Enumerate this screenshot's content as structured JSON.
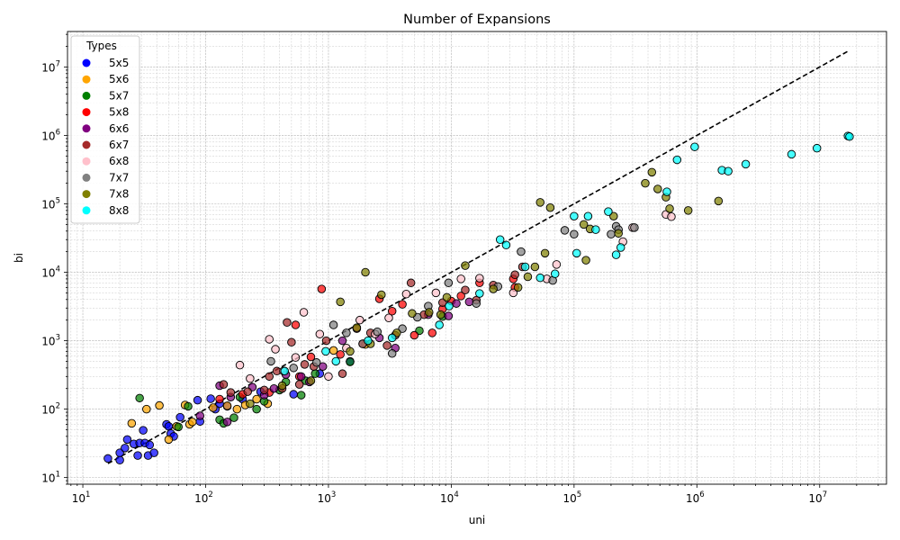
{
  "chart_data": {
    "type": "scatter",
    "title": "Number of Expansions",
    "xlabel": "uni",
    "ylabel": "bi",
    "xscale": "log",
    "yscale": "log",
    "xlim": [
      7.5,
      35000000
    ],
    "ylim": [
      8,
      33000000
    ],
    "grid": true,
    "legend": {
      "title": "Types",
      "placement": "top-left"
    },
    "x_ticks": [
      {
        "value": 10,
        "base": "10",
        "exp": "1"
      },
      {
        "value": 100,
        "base": "10",
        "exp": "2"
      },
      {
        "value": 1000,
        "base": "10",
        "exp": "3"
      },
      {
        "value": 10000,
        "base": "10",
        "exp": "4"
      },
      {
        "value": 100000,
        "base": "10",
        "exp": "5"
      },
      {
        "value": 1000000,
        "base": "10",
        "exp": "6"
      },
      {
        "value": 10000000,
        "base": "10",
        "exp": "7"
      }
    ],
    "y_ticks": [
      {
        "value": 10,
        "base": "10",
        "exp": "1"
      },
      {
        "value": 100,
        "base": "10",
        "exp": "2"
      },
      {
        "value": 1000,
        "base": "10",
        "exp": "3"
      },
      {
        "value": 10000,
        "base": "10",
        "exp": "4"
      },
      {
        "value": 100000,
        "base": "10",
        "exp": "5"
      },
      {
        "value": 1000000,
        "base": "10",
        "exp": "6"
      },
      {
        "value": 10000000,
        "base": "10",
        "exp": "7"
      }
    ],
    "reference_line": {
      "style": "dashed",
      "color": "#000000",
      "x": [
        16,
        17000000
      ],
      "y": [
        16,
        17000000
      ]
    },
    "series": [
      {
        "name": "5x5",
        "color": "#0000ff",
        "points": [
          [
            16,
            19
          ],
          [
            20,
            18
          ],
          [
            20,
            23
          ],
          [
            22,
            27
          ],
          [
            23,
            36
          ],
          [
            26,
            31
          ],
          [
            28,
            21
          ],
          [
            29,
            32
          ],
          [
            31,
            49
          ],
          [
            32,
            32
          ],
          [
            34,
            21
          ],
          [
            35,
            30
          ],
          [
            38,
            23
          ],
          [
            48,
            60
          ],
          [
            50,
            56
          ],
          [
            52,
            44
          ],
          [
            55,
            40
          ],
          [
            62,
            76
          ],
          [
            86,
            135
          ],
          [
            90,
            66
          ],
          [
            110,
            142
          ],
          [
            120,
            100
          ],
          [
            130,
            120
          ],
          [
            150,
            110
          ],
          [
            200,
            140
          ],
          [
            280,
            180
          ],
          [
            520,
            165
          ],
          [
            850,
            330
          ],
          [
            1500,
            500
          ]
        ]
      },
      {
        "name": "5x6",
        "color": "#ffa500",
        "points": [
          [
            25,
            62
          ],
          [
            33,
            100
          ],
          [
            42,
            113
          ],
          [
            50,
            36
          ],
          [
            58,
            56
          ],
          [
            68,
            115
          ],
          [
            74,
            60
          ],
          [
            78,
            65
          ],
          [
            115,
            105
          ],
          [
            150,
            112
          ],
          [
            180,
            100
          ],
          [
            210,
            115
          ],
          [
            260,
            140
          ],
          [
            320,
            120
          ],
          [
            1100,
            720
          ],
          [
            2000,
            880
          ]
        ]
      },
      {
        "name": "5x7",
        "color": "#008000",
        "points": [
          [
            29,
            145
          ],
          [
            60,
            55
          ],
          [
            72,
            110
          ],
          [
            130,
            70
          ],
          [
            140,
            62
          ],
          [
            170,
            75
          ],
          [
            190,
            150
          ],
          [
            260,
            100
          ],
          [
            300,
            130
          ],
          [
            400,
            190
          ],
          [
            450,
            250
          ],
          [
            600,
            160
          ],
          [
            650,
            260
          ],
          [
            780,
            330
          ],
          [
            1500,
            490
          ],
          [
            5500,
            1400
          ],
          [
            8500,
            2250
          ]
        ]
      },
      {
        "name": "5x8",
        "color": "#ff0000",
        "points": [
          [
            130,
            140
          ],
          [
            200,
            165
          ],
          [
            330,
            175
          ],
          [
            540,
            1700
          ],
          [
            580,
            300
          ],
          [
            720,
            580
          ],
          [
            880,
            5700
          ],
          [
            1250,
            630
          ],
          [
            1900,
            900
          ],
          [
            2600,
            4100
          ],
          [
            3300,
            2700
          ],
          [
            4000,
            3400
          ],
          [
            5000,
            1200
          ],
          [
            7000,
            1300
          ],
          [
            8500,
            2900
          ],
          [
            10000,
            3800
          ],
          [
            12000,
            4500
          ],
          [
            17000,
            7000
          ],
          [
            32000,
            8000
          ],
          [
            33000,
            6000
          ]
        ]
      },
      {
        "name": "6x6",
        "color": "#800080",
        "points": [
          [
            90,
            80
          ],
          [
            130,
            220
          ],
          [
            150,
            65
          ],
          [
            160,
            150
          ],
          [
            240,
            210
          ],
          [
            300,
            160
          ],
          [
            360,
            200
          ],
          [
            450,
            320
          ],
          [
            600,
            300
          ],
          [
            700,
            250
          ],
          [
            900,
            420
          ],
          [
            1300,
            1000
          ],
          [
            2600,
            1100
          ],
          [
            3500,
            780
          ],
          [
            6500,
            2400
          ],
          [
            9500,
            2300
          ],
          [
            11000,
            3500
          ],
          [
            14000,
            3700
          ]
        ]
      },
      {
        "name": "6x7",
        "color": "#a52a2a",
        "points": [
          [
            140,
            230
          ],
          [
            160,
            175
          ],
          [
            220,
            180
          ],
          [
            300,
            190
          ],
          [
            330,
            300
          ],
          [
            380,
            360
          ],
          [
            420,
            200
          ],
          [
            460,
            1850
          ],
          [
            500,
            950
          ],
          [
            580,
            230
          ],
          [
            640,
            450
          ],
          [
            760,
            420
          ],
          [
            960,
            1000
          ],
          [
            1300,
            330
          ],
          [
            1700,
            1500
          ],
          [
            2200,
            1300
          ],
          [
            3000,
            850
          ],
          [
            3500,
            1200
          ],
          [
            4700,
            7000
          ],
          [
            6000,
            2400
          ],
          [
            8500,
            3600
          ],
          [
            13000,
            5500
          ],
          [
            16000,
            3900
          ],
          [
            22000,
            6500
          ],
          [
            33000,
            9200
          ],
          [
            38000,
            12000
          ]
        ]
      },
      {
        "name": "6x8",
        "color": "#ffc0cb",
        "points": [
          [
            190,
            440
          ],
          [
            230,
            280
          ],
          [
            330,
            1050
          ],
          [
            370,
            750
          ],
          [
            430,
            360
          ],
          [
            540,
            570
          ],
          [
            630,
            2600
          ],
          [
            850,
            1250
          ],
          [
            1000,
            300
          ],
          [
            1400,
            780
          ],
          [
            1800,
            2000
          ],
          [
            2400,
            1250
          ],
          [
            3100,
            2150
          ],
          [
            4300,
            4800
          ],
          [
            7500,
            5000
          ],
          [
            12000,
            8000
          ],
          [
            17000,
            8200
          ],
          [
            32000,
            5000
          ],
          [
            60000,
            8000
          ],
          [
            72000,
            13000
          ],
          [
            250000,
            28000
          ],
          [
            300000,
            45000
          ],
          [
            560000,
            70000
          ],
          [
            620000,
            65000
          ]
        ]
      },
      {
        "name": "7x7",
        "color": "#808080",
        "points": [
          [
            340,
            500
          ],
          [
            520,
            400
          ],
          [
            800,
            480
          ],
          [
            1100,
            1700
          ],
          [
            1400,
            1300
          ],
          [
            1900,
            900
          ],
          [
            2500,
            1350
          ],
          [
            3300,
            650
          ],
          [
            4000,
            1500
          ],
          [
            5300,
            2200
          ],
          [
            6500,
            3200
          ],
          [
            9500,
            7000
          ],
          [
            16000,
            3500
          ],
          [
            24000,
            6200
          ],
          [
            37000,
            20000
          ],
          [
            67000,
            7600
          ],
          [
            84000,
            41000
          ],
          [
            100000,
            36000
          ],
          [
            200000,
            36000
          ],
          [
            220000,
            47000
          ],
          [
            230000,
            42000
          ],
          [
            310000,
            45000
          ]
        ]
      },
      {
        "name": "7x8",
        "color": "#808000",
        "points": [
          [
            230,
            120
          ],
          [
            420,
            220
          ],
          [
            720,
            260
          ],
          [
            1250,
            3700
          ],
          [
            1500,
            700
          ],
          [
            1700,
            1550
          ],
          [
            2000,
            10000
          ],
          [
            2200,
            900
          ],
          [
            2700,
            4700
          ],
          [
            3600,
            1300
          ],
          [
            4800,
            2500
          ],
          [
            6600,
            2600
          ],
          [
            8200,
            2400
          ],
          [
            9200,
            4300
          ],
          [
            13000,
            12500
          ],
          [
            22000,
            5700
          ],
          [
            35000,
            6000
          ],
          [
            42000,
            8600
          ],
          [
            48000,
            12000
          ],
          [
            53000,
            105000
          ],
          [
            58000,
            19000
          ],
          [
            64000,
            88000
          ],
          [
            120000,
            50000
          ],
          [
            125000,
            15000
          ],
          [
            135000,
            43000
          ],
          [
            210000,
            66000
          ],
          [
            230000,
            37000
          ],
          [
            380000,
            200000
          ],
          [
            430000,
            290000
          ],
          [
            480000,
            165000
          ],
          [
            560000,
            125000
          ],
          [
            600000,
            85000
          ],
          [
            850000,
            80000
          ],
          [
            1500000,
            110000
          ]
        ]
      },
      {
        "name": "8x8",
        "color": "#00ffff",
        "points": [
          [
            440,
            360
          ],
          [
            950,
            700
          ],
          [
            1150,
            500
          ],
          [
            2100,
            1000
          ],
          [
            3300,
            1100
          ],
          [
            8000,
            1700
          ],
          [
            9600,
            3200
          ],
          [
            17000,
            4900
          ],
          [
            25000,
            30000
          ],
          [
            28000,
            25000
          ],
          [
            40000,
            12000
          ],
          [
            53000,
            8300
          ],
          [
            70000,
            9500
          ],
          [
            100000,
            66000
          ],
          [
            105000,
            19000
          ],
          [
            130000,
            66000
          ],
          [
            150000,
            42000
          ],
          [
            190000,
            77000
          ],
          [
            220000,
            18000
          ],
          [
            240000,
            23000
          ],
          [
            570000,
            150000
          ],
          [
            690000,
            440000
          ],
          [
            960000,
            680000
          ],
          [
            1600000,
            310000
          ],
          [
            1800000,
            300000
          ],
          [
            2500000,
            380000
          ],
          [
            5900000,
            530000
          ],
          [
            9500000,
            650000
          ],
          [
            17000000,
            980000
          ],
          [
            17500000,
            960000
          ]
        ]
      }
    ]
  }
}
